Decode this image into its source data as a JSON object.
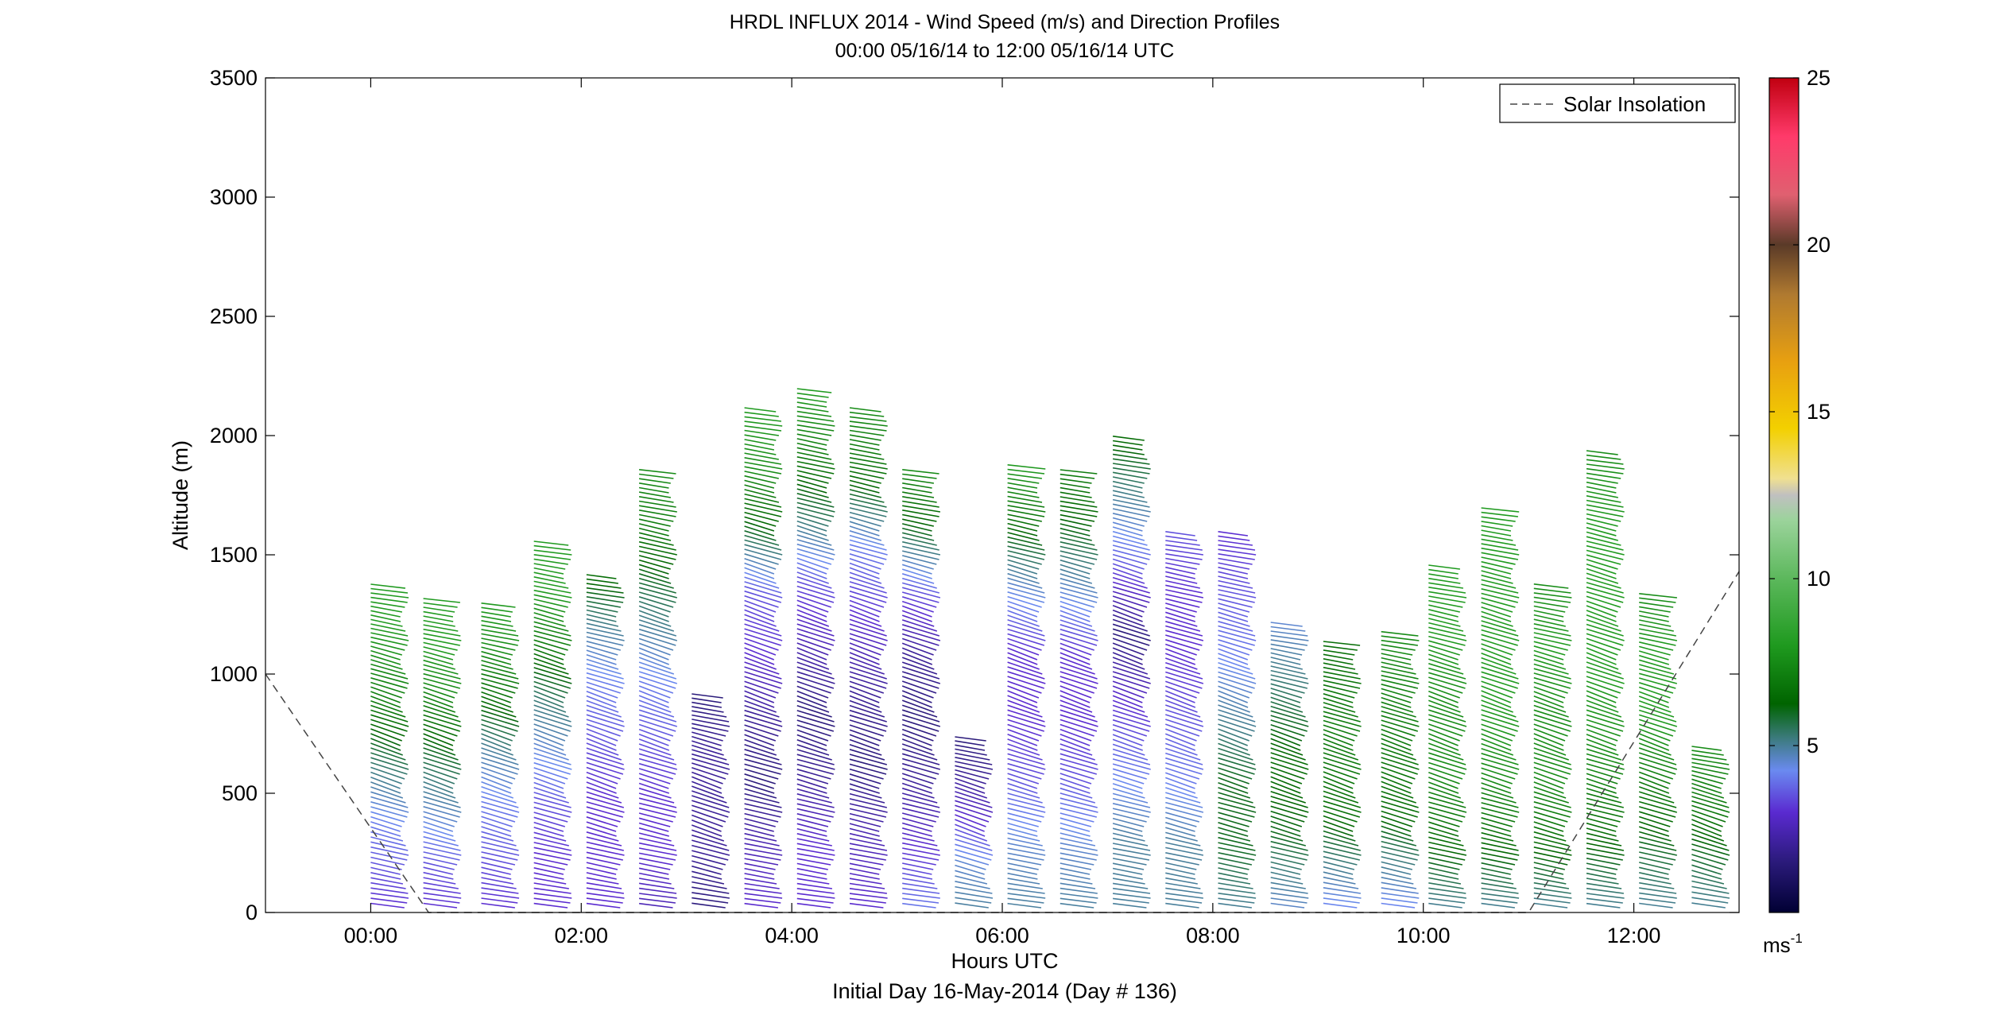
{
  "chart_data": {
    "type": "wind-barb-profile",
    "title": "HRDL INFLUX 2014 - Wind Speed (m/s) and Direction Profiles",
    "subtitle": "00:00 05/16/14 to 12:00 05/16/14  UTC",
    "xlabel": "Hours UTC",
    "xlabel2": "Initial Day 16-May-2014 (Day # 136)",
    "ylabel": "Altitude (m)",
    "xlim": [
      -1.0,
      13.0
    ],
    "ylim": [
      0,
      3500
    ],
    "x_ticks": [
      {
        "value": 0,
        "label": "00:00"
      },
      {
        "value": 2,
        "label": "02:00"
      },
      {
        "value": 4,
        "label": "04:00"
      },
      {
        "value": 6,
        "label": "06:00"
      },
      {
        "value": 8,
        "label": "08:00"
      },
      {
        "value": 10,
        "label": "10:00"
      },
      {
        "value": 12,
        "label": "12:00"
      }
    ],
    "y_ticks": [
      {
        "value": 0,
        "label": "0"
      },
      {
        "value": 500,
        "label": "500"
      },
      {
        "value": 1000,
        "label": "1000"
      },
      {
        "value": 1500,
        "label": "1500"
      },
      {
        "value": 2000,
        "label": "2000"
      },
      {
        "value": 2500,
        "label": "2500"
      },
      {
        "value": 3000,
        "label": "3000"
      },
      {
        "value": 3500,
        "label": "3500"
      }
    ],
    "legend": {
      "label": "Solar Insolation",
      "position": "top-right"
    },
    "colorbar": {
      "min": 0,
      "max": 25,
      "unit_base": "ms",
      "unit_exp": "-1",
      "ticks": [
        {
          "value": 5,
          "label": "5"
        },
        {
          "value": 10,
          "label": "10"
        },
        {
          "value": 15,
          "label": "15"
        },
        {
          "value": 20,
          "label": "20"
        },
        {
          "value": 25,
          "label": "25"
        }
      ]
    },
    "solar_insolation": [
      {
        "hour": -1.0,
        "alt": 1000
      },
      {
        "hour": 0.55,
        "alt": 0
      },
      {
        "hour": 11.0,
        "alt": 0
      },
      {
        "hour": 13.0,
        "alt": 1430
      }
    ],
    "profiles": [
      {
        "hour": 0.0,
        "top": 1360,
        "speeds": [
          3,
          3.5,
          4,
          5,
          6,
          7,
          7.5,
          8,
          8
        ]
      },
      {
        "hour": 0.5,
        "top": 1300,
        "speeds": [
          3,
          3.5,
          4.5,
          5.5,
          6.5,
          7.5,
          8,
          8
        ]
      },
      {
        "hour": 1.05,
        "top": 1290,
        "speeds": [
          3,
          3.5,
          4,
          5,
          6.5,
          7.5,
          8
        ]
      },
      {
        "hour": 1.55,
        "top": 1540,
        "speeds": [
          3,
          3,
          3.5,
          4.5,
          5.5,
          7,
          8,
          8
        ]
      },
      {
        "hour": 2.05,
        "top": 1400,
        "speeds": [
          3,
          3,
          3,
          3.5,
          4,
          5,
          6.5
        ]
      },
      {
        "hour": 2.55,
        "top": 1850,
        "speeds": [
          2.5,
          3,
          3,
          3.5,
          4,
          5,
          6,
          7,
          7.5
        ]
      },
      {
        "hour": 3.05,
        "top": 900,
        "speeds": [
          1.5,
          2,
          2,
          2,
          1.5
        ]
      },
      {
        "hour": 3.55,
        "top": 2100,
        "speeds": [
          3,
          2.5,
          1.5,
          2,
          3,
          3.5,
          6,
          7.5,
          8
        ]
      },
      {
        "hour": 4.05,
        "top": 2180,
        "speeds": [
          3,
          3,
          2,
          1.5,
          2.5,
          3.5,
          5.5,
          7,
          8
        ]
      },
      {
        "hour": 4.55,
        "top": 2100,
        "speeds": [
          3,
          2.5,
          1.5,
          2,
          3,
          4,
          6.5,
          7.5
        ]
      },
      {
        "hour": 5.05,
        "top": 1850,
        "speeds": [
          4,
          3,
          2,
          1.5,
          2,
          3.5,
          6,
          7.5
        ]
      },
      {
        "hour": 5.55,
        "top": 720,
        "speeds": [
          5,
          4.5,
          3,
          2,
          1.5
        ]
      },
      {
        "hour": 6.05,
        "top": 1870,
        "speeds": [
          5,
          4.5,
          3.5,
          3,
          3,
          4.5,
          6.5,
          8
        ]
      },
      {
        "hour": 6.55,
        "top": 1840,
        "speeds": [
          5,
          4.5,
          3.5,
          3,
          3,
          4.5,
          6,
          7
        ]
      },
      {
        "hour": 7.05,
        "top": 1990,
        "speeds": [
          5,
          5,
          4,
          3,
          1.5,
          3.5,
          5,
          6.5
        ]
      },
      {
        "hour": 7.55,
        "top": 1590,
        "speeds": [
          5,
          5,
          4,
          3.5,
          3,
          3,
          3.5
        ]
      },
      {
        "hour": 8.05,
        "top": 1590,
        "speeds": [
          5,
          6,
          6,
          5,
          4,
          3.5,
          3
        ]
      },
      {
        "hour": 8.55,
        "top": 1200,
        "speeds": [
          4.5,
          6,
          6.5,
          5.5,
          4.5
        ]
      },
      {
        "hour": 9.05,
        "top": 1120,
        "speeds": [
          4,
          6.5,
          7,
          6.5
        ]
      },
      {
        "hour": 9.6,
        "top": 1170,
        "speeds": [
          4,
          6.5,
          7,
          7.5
        ]
      },
      {
        "hour": 10.05,
        "top": 1440,
        "speeds": [
          5,
          6.5,
          7.5,
          7.5,
          8,
          8
        ]
      },
      {
        "hour": 10.55,
        "top": 1680,
        "speeds": [
          5,
          6.5,
          7.5,
          8,
          8,
          8,
          8
        ]
      },
      {
        "hour": 11.05,
        "top": 1370,
        "speeds": [
          5,
          6.5,
          7.5,
          7.5,
          8,
          7.5
        ]
      },
      {
        "hour": 11.55,
        "top": 1920,
        "speeds": [
          5,
          6.5,
          7.5,
          8,
          8,
          8,
          7.5
        ]
      },
      {
        "hour": 12.05,
        "top": 1330,
        "speeds": [
          5,
          6,
          7,
          8,
          8,
          7.5
        ]
      },
      {
        "hour": 12.55,
        "top": 680,
        "speeds": [
          5,
          6,
          7,
          7.5
        ]
      }
    ]
  }
}
